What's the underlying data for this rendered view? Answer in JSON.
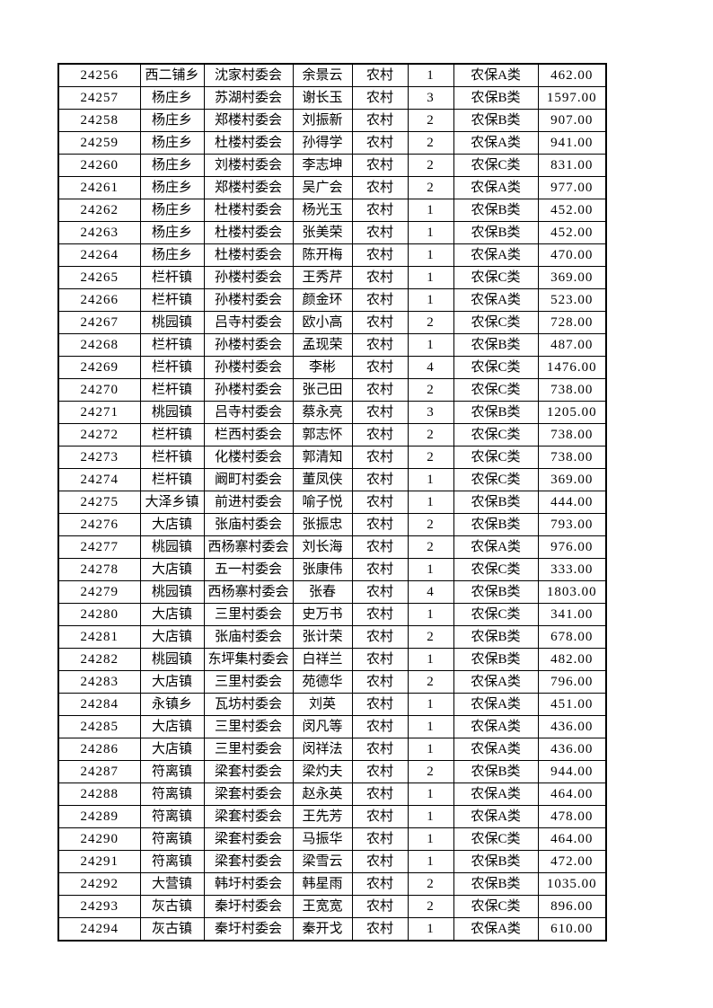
{
  "page": {
    "background_color": "#ffffff",
    "text_color": "#000000",
    "border_color": "#000000"
  },
  "table": {
    "columns": [
      {
        "id": "record-id"
      },
      {
        "id": "township"
      },
      {
        "id": "village-committee"
      },
      {
        "id": "person-name"
      },
      {
        "id": "residence-type"
      },
      {
        "id": "person-count"
      },
      {
        "id": "insurance-category"
      },
      {
        "id": "amount"
      }
    ],
    "rows": [
      [
        "24256",
        "西二铺乡",
        "沈家村委会",
        "余景云",
        "农村",
        "1",
        "农保A类",
        "462.00"
      ],
      [
        "24257",
        "杨庄乡",
        "苏湖村委会",
        "谢长玉",
        "农村",
        "3",
        "农保B类",
        "1597.00"
      ],
      [
        "24258",
        "杨庄乡",
        "郑楼村委会",
        "刘振新",
        "农村",
        "2",
        "农保B类",
        "907.00"
      ],
      [
        "24259",
        "杨庄乡",
        "杜楼村委会",
        "孙得学",
        "农村",
        "2",
        "农保A类",
        "941.00"
      ],
      [
        "24260",
        "杨庄乡",
        "刘楼村委会",
        "李志坤",
        "农村",
        "2",
        "农保C类",
        "831.00"
      ],
      [
        "24261",
        "杨庄乡",
        "郑楼村委会",
        "吴广会",
        "农村",
        "2",
        "农保A类",
        "977.00"
      ],
      [
        "24262",
        "杨庄乡",
        "杜楼村委会",
        "杨光玉",
        "农村",
        "1",
        "农保B类",
        "452.00"
      ],
      [
        "24263",
        "杨庄乡",
        "杜楼村委会",
        "张美荣",
        "农村",
        "1",
        "农保B类",
        "452.00"
      ],
      [
        "24264",
        "杨庄乡",
        "杜楼村委会",
        "陈开梅",
        "农村",
        "1",
        "农保A类",
        "470.00"
      ],
      [
        "24265",
        "栏杆镇",
        "孙楼村委会",
        "王秀芹",
        "农村",
        "1",
        "农保C类",
        "369.00"
      ],
      [
        "24266",
        "栏杆镇",
        "孙楼村委会",
        "颜金环",
        "农村",
        "1",
        "农保A类",
        "523.00"
      ],
      [
        "24267",
        "桃园镇",
        "吕寺村委会",
        "欧小高",
        "农村",
        "2",
        "农保C类",
        "728.00"
      ],
      [
        "24268",
        "栏杆镇",
        "孙楼村委会",
        "孟现荣",
        "农村",
        "1",
        "农保B类",
        "487.00"
      ],
      [
        "24269",
        "栏杆镇",
        "孙楼村委会",
        "李彬",
        "农村",
        "4",
        "农保C类",
        "1476.00"
      ],
      [
        "24270",
        "栏杆镇",
        "孙楼村委会",
        "张己田",
        "农村",
        "2",
        "农保C类",
        "738.00"
      ],
      [
        "24271",
        "桃园镇",
        "吕寺村委会",
        "蔡永亮",
        "农村",
        "3",
        "农保B类",
        "1205.00"
      ],
      [
        "24272",
        "栏杆镇",
        "栏西村委会",
        "郭志怀",
        "农村",
        "2",
        "农保C类",
        "738.00"
      ],
      [
        "24273",
        "栏杆镇",
        "化楼村委会",
        "郭清知",
        "农村",
        "2",
        "农保C类",
        "738.00"
      ],
      [
        "24274",
        "栏杆镇",
        "阚町村委会",
        "董凤侠",
        "农村",
        "1",
        "农保C类",
        "369.00"
      ],
      [
        "24275",
        "大泽乡镇",
        "前进村委会",
        "喻子悦",
        "农村",
        "1",
        "农保B类",
        "444.00"
      ],
      [
        "24276",
        "大店镇",
        "张庙村委会",
        "张振忠",
        "农村",
        "2",
        "农保B类",
        "793.00"
      ],
      [
        "24277",
        "桃园镇",
        "西杨寨村委会",
        "刘长海",
        "农村",
        "2",
        "农保A类",
        "976.00"
      ],
      [
        "24278",
        "大店镇",
        "五一村委会",
        "张康伟",
        "农村",
        "1",
        "农保C类",
        "333.00"
      ],
      [
        "24279",
        "桃园镇",
        "西杨寨村委会",
        "张春",
        "农村",
        "4",
        "农保B类",
        "1803.00"
      ],
      [
        "24280",
        "大店镇",
        "三里村委会",
        "史万书",
        "农村",
        "1",
        "农保C类",
        "341.00"
      ],
      [
        "24281",
        "大店镇",
        "张庙村委会",
        "张计荣",
        "农村",
        "2",
        "农保B类",
        "678.00"
      ],
      [
        "24282",
        "桃园镇",
        "东坪集村委会",
        "白祥兰",
        "农村",
        "1",
        "农保B类",
        "482.00"
      ],
      [
        "24283",
        "大店镇",
        "三里村委会",
        "苑德华",
        "农村",
        "2",
        "农保A类",
        "796.00"
      ],
      [
        "24284",
        "永镇乡",
        "瓦坊村委会",
        "刘英",
        "农村",
        "1",
        "农保A类",
        "451.00"
      ],
      [
        "24285",
        "大店镇",
        "三里村委会",
        "闵凡等",
        "农村",
        "1",
        "农保A类",
        "436.00"
      ],
      [
        "24286",
        "大店镇",
        "三里村委会",
        "闵祥法",
        "农村",
        "1",
        "农保A类",
        "436.00"
      ],
      [
        "24287",
        "符离镇",
        "梁套村委会",
        "梁灼夫",
        "农村",
        "2",
        "农保B类",
        "944.00"
      ],
      [
        "24288",
        "符离镇",
        "梁套村委会",
        "赵永英",
        "农村",
        "1",
        "农保A类",
        "464.00"
      ],
      [
        "24289",
        "符离镇",
        "梁套村委会",
        "王先芳",
        "农村",
        "1",
        "农保A类",
        "478.00"
      ],
      [
        "24290",
        "符离镇",
        "梁套村委会",
        "马振华",
        "农村",
        "1",
        "农保C类",
        "464.00"
      ],
      [
        "24291",
        "符离镇",
        "梁套村委会",
        "梁雪云",
        "农村",
        "1",
        "农保B类",
        "472.00"
      ],
      [
        "24292",
        "大营镇",
        "韩圩村委会",
        "韩星雨",
        "农村",
        "2",
        "农保B类",
        "1035.00"
      ],
      [
        "24293",
        "灰古镇",
        "秦圩村委会",
        "王宽宽",
        "农村",
        "2",
        "农保C类",
        "896.00"
      ],
      [
        "24294",
        "灰古镇",
        "秦圩村委会",
        "秦开戈",
        "农村",
        "1",
        "农保A类",
        "610.00"
      ]
    ]
  }
}
